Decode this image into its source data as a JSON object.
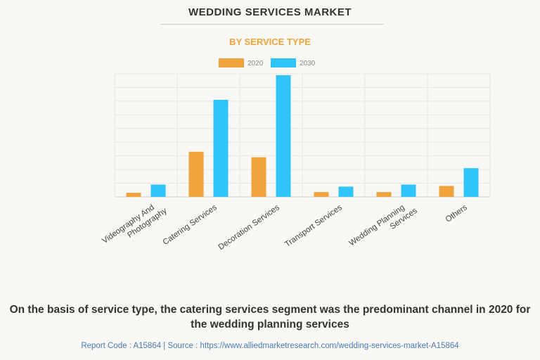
{
  "title": "WEDDING SERVICES MARKET",
  "subtitle": "BY SERVICE TYPE",
  "caption": "On the basis of service type, the catering services segment was the predominant channel in 2020 for the wedding planning services",
  "source": "Report Code : A15864  |  Source : https://www.alliedmarketresearch.com/wedding-services-market-A15864",
  "chart_data": {
    "type": "bar",
    "categories": [
      "Videography And Photography",
      "Catering Services",
      "Decoration Services",
      "Transport Services",
      "Wedding Planning Services",
      "Others"
    ],
    "category_lines": [
      [
        "Videography And",
        "Photography"
      ],
      [
        "Catering Services"
      ],
      [
        "Decoration Services"
      ],
      [
        "Transport Services"
      ],
      [
        "Wedding Planning",
        "Services"
      ],
      [
        "Others"
      ]
    ],
    "series": [
      {
        "name": "2020",
        "color": "#f0a33c",
        "values": [
          0.3,
          3.3,
          2.9,
          0.35,
          0.35,
          0.8
        ]
      },
      {
        "name": "2030",
        "color": "#2fc4fa",
        "values": [
          0.9,
          7.1,
          8.9,
          0.75,
          0.9,
          2.1
        ]
      }
    ],
    "ylim": [
      0,
      9
    ],
    "y_tick_labels_shown": false,
    "grid": true,
    "legend": "top-center",
    "xlabel": "",
    "ylabel": ""
  }
}
